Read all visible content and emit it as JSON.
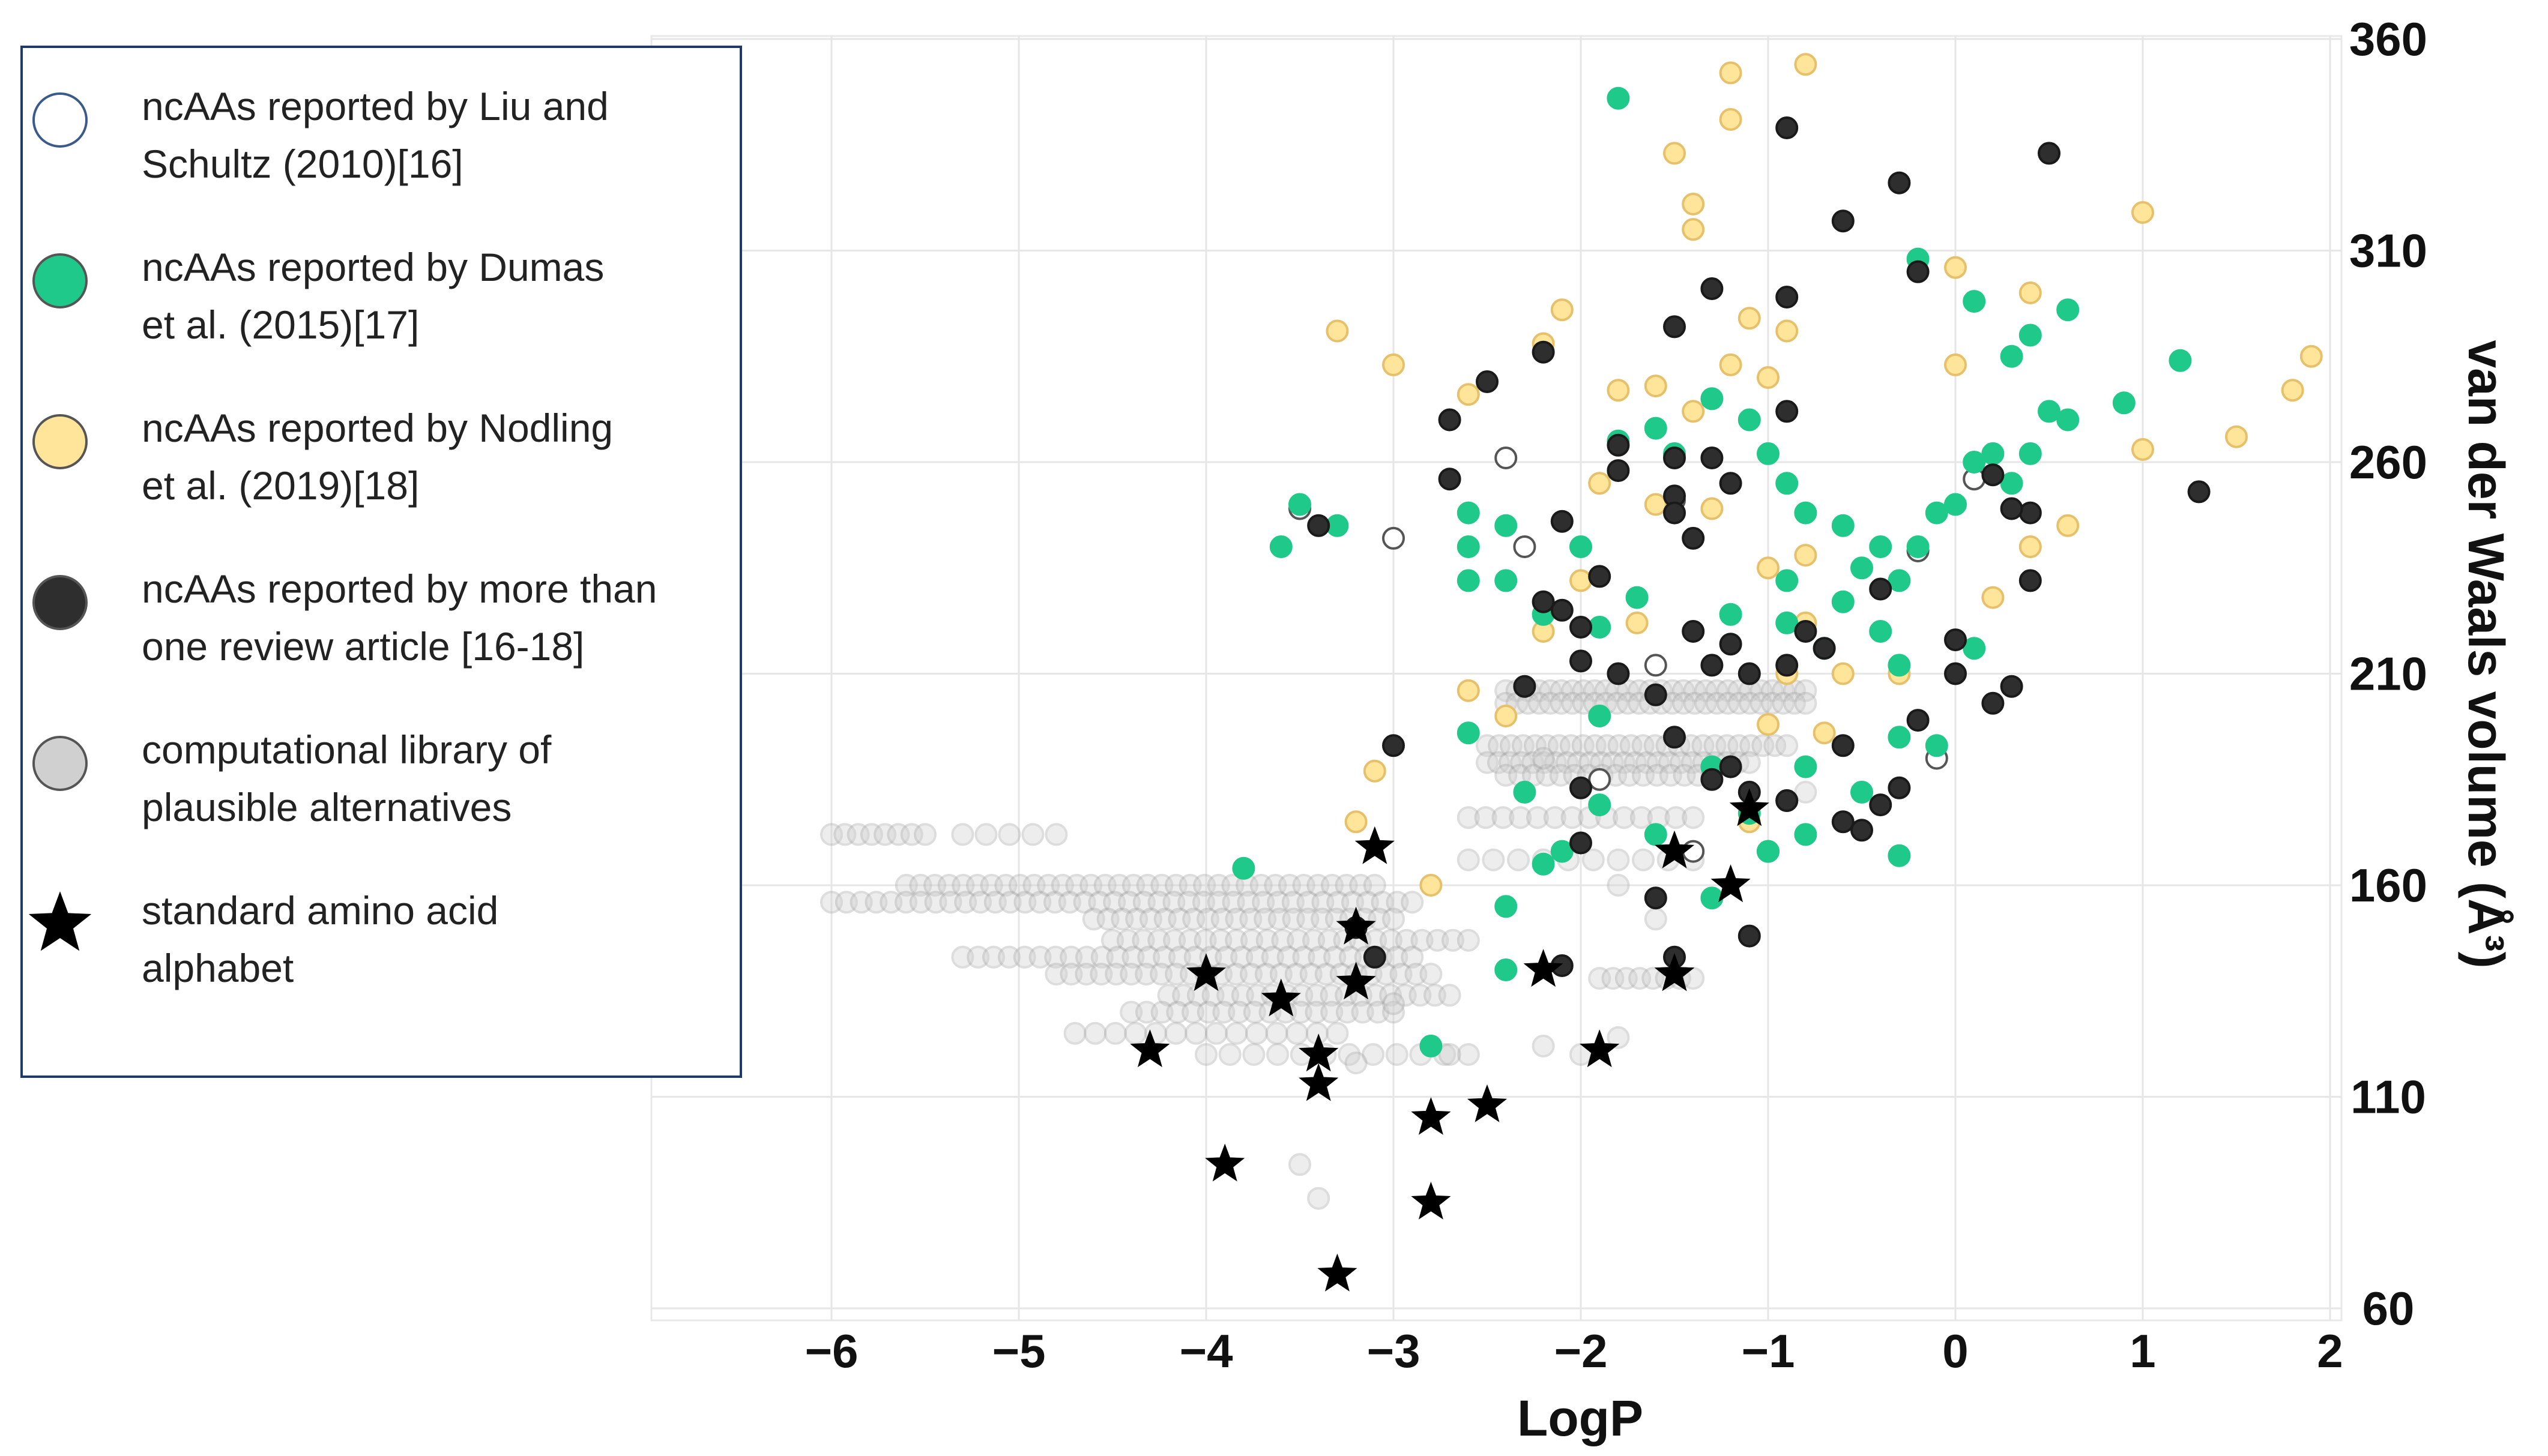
{
  "chart_data": {
    "type": "scatter",
    "xlabel": "LogP",
    "ylabel": "van der Waals volume (Å³)",
    "xlim": [
      -7.0,
      2.0
    ],
    "ylim": [
      52,
      362
    ],
    "x_ticks": [
      {
        "v": -6,
        "label": "−6"
      },
      {
        "v": -5,
        "label": "−5"
      },
      {
        "v": -4,
        "label": "−4"
      },
      {
        "v": -3,
        "label": "−3"
      },
      {
        "v": -2,
        "label": "−2"
      },
      {
        "v": -1,
        "label": "−1"
      },
      {
        "v": 0,
        "label": "0"
      },
      {
        "v": 1,
        "label": "1"
      },
      {
        "v": 2,
        "label": "2"
      }
    ],
    "y_ticks": [
      {
        "v": 60,
        "label": "60"
      },
      {
        "v": 110,
        "label": "110"
      },
      {
        "v": 160,
        "label": "160"
      },
      {
        "v": 210,
        "label": "210"
      },
      {
        "v": 260,
        "label": "260"
      },
      {
        "v": 310,
        "label": "310"
      },
      {
        "v": 360,
        "label": "360"
      }
    ],
    "grid": true,
    "legend_position": "top-left",
    "series": [
      {
        "name": "ncAAs reported by Liu and Schultz (2010)[16]",
        "legend_lines": [
          "ncAAs reported by Liu and",
          "Schultz (2010)[16]"
        ],
        "marker": "circle",
        "fill": "#ffffff",
        "stroke": "#555555",
        "points": [
          [
            -3.5,
            249
          ],
          [
            -3.0,
            242
          ],
          [
            -2.4,
            261
          ],
          [
            -2.3,
            240
          ],
          [
            -1.5,
            251
          ],
          [
            -1.6,
            212
          ],
          [
            -0.2,
            239
          ],
          [
            0.1,
            256
          ],
          [
            -1.0,
            168
          ],
          [
            -0.1,
            190
          ],
          [
            -1.9,
            185
          ],
          [
            -1.4,
            168
          ],
          [
            -0.9,
            180
          ]
        ]
      },
      {
        "name": "ncAAs reported by Dumas et al. (2015)[17]",
        "legend_lines": [
          "ncAAs reported by Dumas",
          "et al. (2015)[17]"
        ],
        "marker": "circle",
        "fill": "#1fc98a",
        "stroke": "#1fc98a",
        "points": [
          [
            -1.8,
            346
          ],
          [
            -0.2,
            308
          ],
          [
            0.1,
            298
          ],
          [
            0.4,
            290
          ],
          [
            0.6,
            296
          ],
          [
            0.3,
            285
          ],
          [
            1.2,
            284
          ],
          [
            -3.6,
            240
          ],
          [
            -3.5,
            250
          ],
          [
            -3.3,
            245
          ],
          [
            -2.6,
            248
          ],
          [
            -2.6,
            240
          ],
          [
            -2.4,
            245
          ],
          [
            -2.0,
            240
          ],
          [
            -1.8,
            265
          ],
          [
            -1.6,
            268
          ],
          [
            -1.5,
            262
          ],
          [
            -1.3,
            275
          ],
          [
            -1.1,
            270
          ],
          [
            -1.0,
            262
          ],
          [
            -0.9,
            255
          ],
          [
            -0.8,
            248
          ],
          [
            -0.6,
            245
          ],
          [
            -0.5,
            235
          ],
          [
            -0.4,
            240
          ],
          [
            -0.3,
            232
          ],
          [
            -0.2,
            240
          ],
          [
            0.0,
            250
          ],
          [
            0.1,
            260
          ],
          [
            0.2,
            262
          ],
          [
            0.3,
            255
          ],
          [
            0.4,
            262
          ],
          [
            0.5,
            272
          ],
          [
            0.6,
            270
          ],
          [
            0.9,
            274
          ],
          [
            -2.6,
            232
          ],
          [
            -2.4,
            232
          ],
          [
            -2.2,
            224
          ],
          [
            -1.9,
            221
          ],
          [
            -1.7,
            228
          ],
          [
            -1.2,
            224
          ],
          [
            -0.9,
            222
          ],
          [
            -0.6,
            227
          ],
          [
            -0.4,
            220
          ],
          [
            -0.3,
            212
          ],
          [
            0.1,
            216
          ],
          [
            -1.3,
            188
          ],
          [
            -1.1,
            177
          ],
          [
            -0.8,
            188
          ],
          [
            -0.5,
            182
          ],
          [
            -0.3,
            195
          ],
          [
            -0.1,
            193
          ],
          [
            -0.3,
            167
          ],
          [
            -0.8,
            172
          ],
          [
            -1.0,
            168
          ],
          [
            -2.3,
            182
          ],
          [
            -2.2,
            165
          ],
          [
            -2.1,
            168
          ],
          [
            -1.9,
            179
          ],
          [
            -1.6,
            172
          ],
          [
            -1.3,
            157
          ],
          [
            -2.4,
            155
          ],
          [
            -2.4,
            140
          ],
          [
            -2.8,
            122
          ],
          [
            -3.8,
            164
          ],
          [
            -0.1,
            248
          ],
          [
            -0.9,
            232
          ],
          [
            -0.7,
            216
          ],
          [
            -2.6,
            196
          ],
          [
            -1.9,
            200
          ]
        ]
      },
      {
        "name": "ncAAs reported by Nodling et al. (2019)[18]",
        "legend_lines": [
          "ncAAs reported by Nodling",
          "et al. (2019)[18]"
        ],
        "marker": "circle",
        "fill": "#ffe59a",
        "stroke": "#e6c06a",
        "points": [
          [
            -1.2,
            352
          ],
          [
            -0.8,
            354
          ],
          [
            -1.2,
            341
          ],
          [
            -1.5,
            333
          ],
          [
            -1.4,
            321
          ],
          [
            -1.4,
            315
          ],
          [
            1.0,
            319
          ],
          [
            0.0,
            306
          ],
          [
            0.4,
            300
          ],
          [
            -2.1,
            296
          ],
          [
            -1.1,
            294
          ],
          [
            -0.9,
            291
          ],
          [
            -3.3,
            291
          ],
          [
            -3.0,
            283
          ],
          [
            -2.6,
            276
          ],
          [
            -2.2,
            288
          ],
          [
            -1.8,
            277
          ],
          [
            -1.6,
            278
          ],
          [
            -1.4,
            272
          ],
          [
            -1.2,
            283
          ],
          [
            -1.0,
            280
          ],
          [
            0.0,
            283
          ],
          [
            1.0,
            263
          ],
          [
            1.5,
            266
          ],
          [
            1.8,
            277
          ],
          [
            1.9,
            285
          ],
          [
            -1.9,
            255
          ],
          [
            -1.6,
            250
          ],
          [
            -1.3,
            249
          ],
          [
            -1.0,
            235
          ],
          [
            -0.8,
            238
          ],
          [
            0.6,
            245
          ],
          [
            0.4,
            240
          ],
          [
            -2.0,
            232
          ],
          [
            -2.2,
            220
          ],
          [
            -1.7,
            222
          ],
          [
            -0.8,
            222
          ],
          [
            0.2,
            228
          ],
          [
            -0.6,
            210
          ],
          [
            -0.3,
            210
          ],
          [
            -2.6,
            206
          ],
          [
            -3.1,
            187
          ],
          [
            -3.2,
            175
          ],
          [
            -2.8,
            160
          ],
          [
            -1.1,
            175
          ],
          [
            -0.7,
            196
          ],
          [
            -1.0,
            198
          ],
          [
            -2.4,
            200
          ],
          [
            -0.9,
            210
          ]
        ]
      },
      {
        "name": "ncAAs reported by more than one review article [16-18]",
        "legend_lines": [
          "ncAAs reported by more than",
          "one review article [16-18]"
        ],
        "marker": "circle",
        "fill": "#2e2e2e",
        "stroke": "#1a1a1a",
        "points": [
          [
            -0.9,
            339
          ],
          [
            0.5,
            333
          ],
          [
            -0.3,
            326
          ],
          [
            -0.6,
            317
          ],
          [
            -0.2,
            305
          ],
          [
            -1.3,
            301
          ],
          [
            -0.9,
            299
          ],
          [
            -1.5,
            292
          ],
          [
            -2.2,
            286
          ],
          [
            -2.5,
            279
          ],
          [
            -2.7,
            270
          ],
          [
            -1.8,
            264
          ],
          [
            -1.5,
            261
          ],
          [
            -1.3,
            261
          ],
          [
            -0.9,
            272
          ],
          [
            -1.8,
            258
          ],
          [
            -1.5,
            252
          ],
          [
            -2.7,
            256
          ],
          [
            -1.5,
            248
          ],
          [
            -1.4,
            242
          ],
          [
            -1.2,
            255
          ],
          [
            1.3,
            253
          ],
          [
            0.2,
            257
          ],
          [
            0.4,
            248
          ],
          [
            0.4,
            232
          ],
          [
            -3.4,
            245
          ],
          [
            -2.1,
            246
          ],
          [
            -1.9,
            233
          ],
          [
            -2.2,
            227
          ],
          [
            -2.1,
            225
          ],
          [
            -2.0,
            221
          ],
          [
            -1.4,
            220
          ],
          [
            -1.2,
            217
          ],
          [
            -0.8,
            220
          ],
          [
            -0.4,
            230
          ],
          [
            0.0,
            218
          ],
          [
            -2.0,
            213
          ],
          [
            -2.3,
            207
          ],
          [
            -1.8,
            210
          ],
          [
            -1.6,
            205
          ],
          [
            -1.3,
            212
          ],
          [
            -1.1,
            210
          ],
          [
            -0.9,
            212
          ],
          [
            -0.7,
            216
          ],
          [
            0.0,
            210
          ],
          [
            0.2,
            203
          ],
          [
            0.3,
            207
          ],
          [
            -0.2,
            199
          ],
          [
            -0.6,
            193
          ],
          [
            -1.5,
            195
          ],
          [
            -1.3,
            185
          ],
          [
            -1.2,
            188
          ],
          [
            -1.1,
            182
          ],
          [
            -0.9,
            180
          ],
          [
            -0.6,
            175
          ],
          [
            -0.5,
            173
          ],
          [
            -0.4,
            179
          ],
          [
            -0.3,
            183
          ],
          [
            -2.0,
            183
          ],
          [
            -2.0,
            170
          ],
          [
            -1.6,
            157
          ],
          [
            -1.1,
            148
          ],
          [
            -2.1,
            141
          ],
          [
            -3.0,
            193
          ],
          [
            -3.2,
            150
          ],
          [
            -3.1,
            143
          ],
          [
            -1.5,
            143
          ],
          [
            0.3,
            249
          ]
        ]
      },
      {
        "name": "computational library of plausible alternatives",
        "legend_lines": [
          "computational library of",
          "plausible alternatives"
        ],
        "marker": "circle",
        "fill": "#d0d0d0",
        "stroke": "#a8a8a8",
        "opacity": 0.38,
        "rows": [
          {
            "y": 172,
            "xmin": -6.0,
            "xmax": -5.5,
            "count": 8
          },
          {
            "y": 172,
            "xmin": -5.3,
            "xmax": -4.8,
            "count": 5
          },
          {
            "y": 160,
            "xmin": -5.6,
            "xmax": -3.1,
            "count": 34
          },
          {
            "y": 156,
            "xmin": -6.0,
            "xmax": -2.9,
            "count": 40
          },
          {
            "y": 152,
            "xmin": -4.6,
            "xmax": -3.0,
            "count": 22
          },
          {
            "y": 147,
            "xmin": -4.5,
            "xmax": -2.6,
            "count": 24
          },
          {
            "y": 143,
            "xmin": -5.3,
            "xmax": -2.9,
            "count": 30
          },
          {
            "y": 139,
            "xmin": -4.8,
            "xmax": -2.8,
            "count": 26
          },
          {
            "y": 134,
            "xmin": -4.2,
            "xmax": -2.7,
            "count": 20
          },
          {
            "y": 130,
            "xmin": -4.4,
            "xmax": -3.0,
            "count": 18
          },
          {
            "y": 125,
            "xmin": -4.7,
            "xmax": -3.3,
            "count": 14
          },
          {
            "y": 120,
            "xmin": -4.0,
            "xmax": -2.6,
            "count": 12
          },
          {
            "y": 206,
            "xmin": -2.4,
            "xmax": -0.8,
            "count": 28
          },
          {
            "y": 203,
            "xmin": -2.4,
            "xmax": -0.8,
            "count": 28
          },
          {
            "y": 193,
            "xmin": -2.5,
            "xmax": -0.9,
            "count": 26
          },
          {
            "y": 189,
            "xmin": -2.5,
            "xmax": -1.1,
            "count": 24
          },
          {
            "y": 186,
            "xmin": -2.4,
            "xmax": -1.3,
            "count": 16
          },
          {
            "y": 176,
            "xmin": -2.6,
            "xmax": -1.4,
            "count": 14
          },
          {
            "y": 166,
            "xmin": -2.6,
            "xmax": -1.4,
            "count": 10
          },
          {
            "y": 138,
            "xmin": -1.9,
            "xmax": -1.4,
            "count": 8
          }
        ],
        "points": [
          [
            -3.5,
            94
          ],
          [
            -3.4,
            86
          ],
          [
            -3.2,
            118
          ],
          [
            -2.7,
            120
          ],
          [
            -2.2,
            122
          ],
          [
            -2.0,
            120
          ],
          [
            -1.8,
            124
          ],
          [
            -3.0,
            132
          ],
          [
            -2.2,
            190
          ],
          [
            -1.6,
            152
          ],
          [
            -1.8,
            160
          ],
          [
            -0.8,
            182
          ]
        ]
      },
      {
        "name": "standard amino acid alphabet",
        "legend_lines": [
          "standard amino acid",
          "alphabet"
        ],
        "marker": "star",
        "fill": "#000000",
        "stroke": "#000000",
        "points": [
          [
            -3.1,
            169
          ],
          [
            -3.2,
            150
          ],
          [
            -4.0,
            139
          ],
          [
            -3.6,
            133
          ],
          [
            -3.2,
            137
          ],
          [
            -4.3,
            121
          ],
          [
            -3.4,
            120
          ],
          [
            -3.4,
            113
          ],
          [
            -2.8,
            105
          ],
          [
            -2.5,
            108
          ],
          [
            -3.9,
            94
          ],
          [
            -2.8,
            85
          ],
          [
            -3.3,
            68
          ],
          [
            -2.2,
            140
          ],
          [
            -1.9,
            121
          ],
          [
            -1.5,
            139
          ],
          [
            -1.5,
            139
          ],
          [
            -1.5,
            168
          ],
          [
            -1.2,
            160
          ],
          [
            -1.1,
            178
          ]
        ]
      }
    ]
  }
}
